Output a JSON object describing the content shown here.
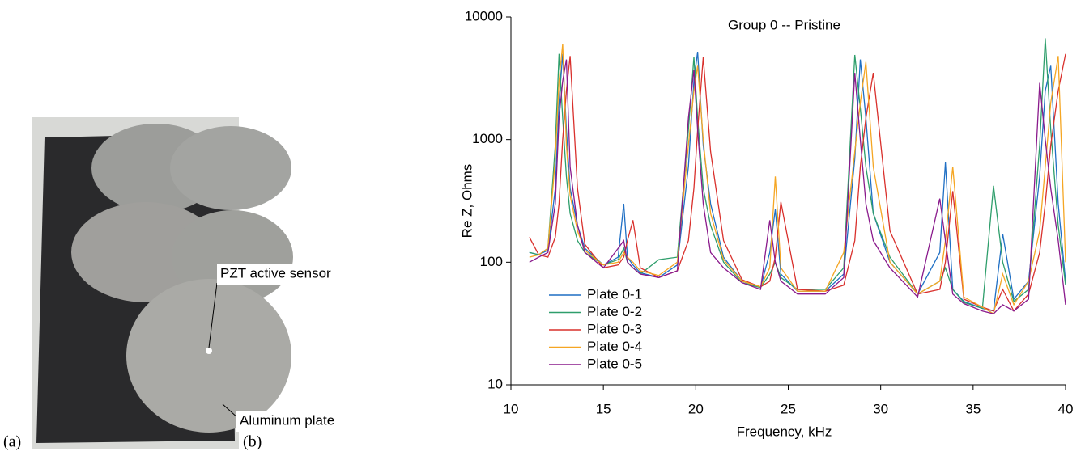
{
  "figure": {
    "panel_labels": [
      "(a)",
      "(b)"
    ],
    "photo_annotations": [
      "PZT active sensor",
      "Aluminum plate"
    ]
  },
  "chart_data": {
    "type": "line",
    "title": "Group 0 -- Pristine",
    "x_label": "Frequency, kHz",
    "y_label": "Re Z, Ohms",
    "xlim": [
      10,
      40
    ],
    "xticks": [
      10,
      15,
      20,
      25,
      30,
      35,
      40
    ],
    "ylim": [
      10,
      10000
    ],
    "yticks": [
      10,
      100,
      1000,
      10000
    ],
    "yscale": "log",
    "grid": false,
    "legend": "left",
    "x": [
      11,
      11.5,
      12,
      12.4,
      12.6,
      12.8,
      13.0,
      13.2,
      13.6,
      14,
      15,
      15.8,
      16.1,
      16.3,
      16.6,
      17,
      18,
      19,
      19.6,
      19.9,
      20.1,
      20.4,
      20.8,
      21.5,
      22.5,
      23.5,
      24.0,
      24.3,
      24.6,
      25.5,
      27,
      28,
      28.6,
      28.9,
      29.2,
      29.6,
      30.5,
      32,
      33.2,
      33.5,
      33.9,
      34.5,
      35.5,
      36.1,
      36.6,
      37.2,
      38,
      38.6,
      38.9,
      39.2,
      39.6,
      40
    ],
    "series": [
      {
        "name": "Plate 0-1",
        "color": "#1f6fc4",
        "values": [
          120,
          115,
          125,
          400,
          2000,
          5000,
          1200,
          400,
          200,
          130,
          95,
          110,
          300,
          110,
          95,
          82,
          75,
          95,
          600,
          3000,
          5200,
          900,
          300,
          110,
          70,
          62,
          120,
          270,
          80,
          58,
          58,
          80,
          700,
          4500,
          1500,
          250,
          100,
          55,
          120,
          650,
          60,
          48,
          42,
          40,
          170,
          50,
          70,
          500,
          2500,
          4000,
          300,
          70
        ]
      },
      {
        "name": "Plate 0-2",
        "color": "#2e9e6b",
        "values": [
          120,
          115,
          130,
          900,
          5000,
          1500,
          500,
          250,
          150,
          120,
          95,
          105,
          130,
          100,
          90,
          80,
          105,
          110,
          1200,
          4700,
          1500,
          400,
          200,
          100,
          68,
          62,
          80,
          100,
          75,
          60,
          60,
          90,
          4900,
          1800,
          600,
          250,
          110,
          55,
          70,
          90,
          60,
          47,
          42,
          420,
          100,
          48,
          60,
          900,
          6700,
          1200,
          200,
          65
        ]
      },
      {
        "name": "Plate 0-3",
        "color": "#d9302c",
        "values": [
          160,
          115,
          110,
          160,
          300,
          1000,
          2500,
          4800,
          400,
          140,
          90,
          95,
          110,
          150,
          220,
          90,
          75,
          85,
          150,
          400,
          1200,
          4700,
          800,
          150,
          72,
          63,
          70,
          110,
          310,
          60,
          58,
          65,
          150,
          600,
          1500,
          3500,
          180,
          55,
          60,
          100,
          380,
          50,
          43,
          40,
          60,
          40,
          55,
          120,
          300,
          900,
          2500,
          5000
        ]
      },
      {
        "name": "Plate 0-4",
        "color": "#f5a623",
        "values": [
          110,
          115,
          130,
          700,
          3000,
          6000,
          900,
          350,
          180,
          125,
          95,
          100,
          120,
          110,
          100,
          85,
          78,
          100,
          900,
          2500,
          4000,
          1000,
          250,
          105,
          70,
          63,
          90,
          500,
          90,
          58,
          58,
          120,
          800,
          2000,
          4300,
          600,
          100,
          55,
          70,
          150,
          600,
          52,
          43,
          38,
          80,
          45,
          70,
          180,
          600,
          2000,
          4800,
          100
        ]
      },
      {
        "name": "Plate 0-5",
        "color": "#8a1a8c",
        "values": [
          100,
          110,
          120,
          300,
          1500,
          3000,
          4500,
          600,
          200,
          120,
          90,
          130,
          150,
          100,
          90,
          80,
          75,
          85,
          1500,
          3700,
          1200,
          300,
          120,
          90,
          68,
          60,
          220,
          100,
          70,
          55,
          55,
          75,
          3500,
          1000,
          300,
          150,
          90,
          52,
          330,
          150,
          55,
          46,
          40,
          38,
          45,
          40,
          50,
          2900,
          1000,
          400,
          150,
          45
        ]
      }
    ]
  }
}
